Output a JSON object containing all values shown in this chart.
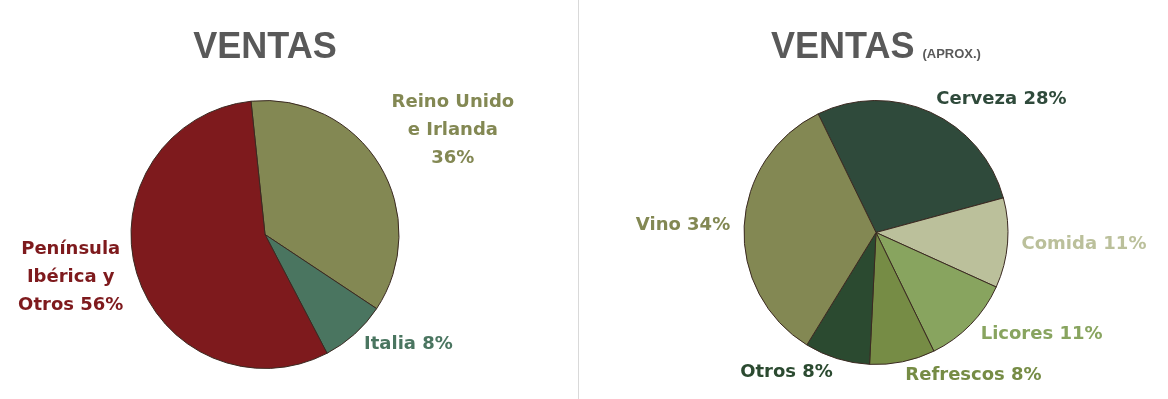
{
  "chart_data": [
    {
      "type": "pie",
      "title": "VENTAS",
      "categories": [
        "Reino Unido e Irlanda",
        "Italia",
        "Península Ibérica y Otros"
      ],
      "values": [
        36,
        8,
        56
      ],
      "colors": [
        "#838853",
        "#4a7560",
        "#7e1a1d"
      ],
      "value_labels": [
        "36%",
        "8%",
        "56%"
      ],
      "legend": false
    },
    {
      "type": "pie",
      "title": "VENTAS",
      "subtitle": "(APROX.)",
      "categories": [
        "Cerveza",
        "Comida",
        "Licores",
        "Refrescos",
        "Otros",
        "Vino"
      ],
      "values": [
        28,
        11,
        11,
        8,
        8,
        34
      ],
      "colors": [
        "#2f4a3b",
        "#bbc09b",
        "#88a45f",
        "#768c45",
        "#2b4a30",
        "#838853"
      ],
      "value_labels": [
        "28%",
        "11%",
        "11%",
        "8%",
        "8%",
        "34%"
      ],
      "legend": false
    }
  ]
}
